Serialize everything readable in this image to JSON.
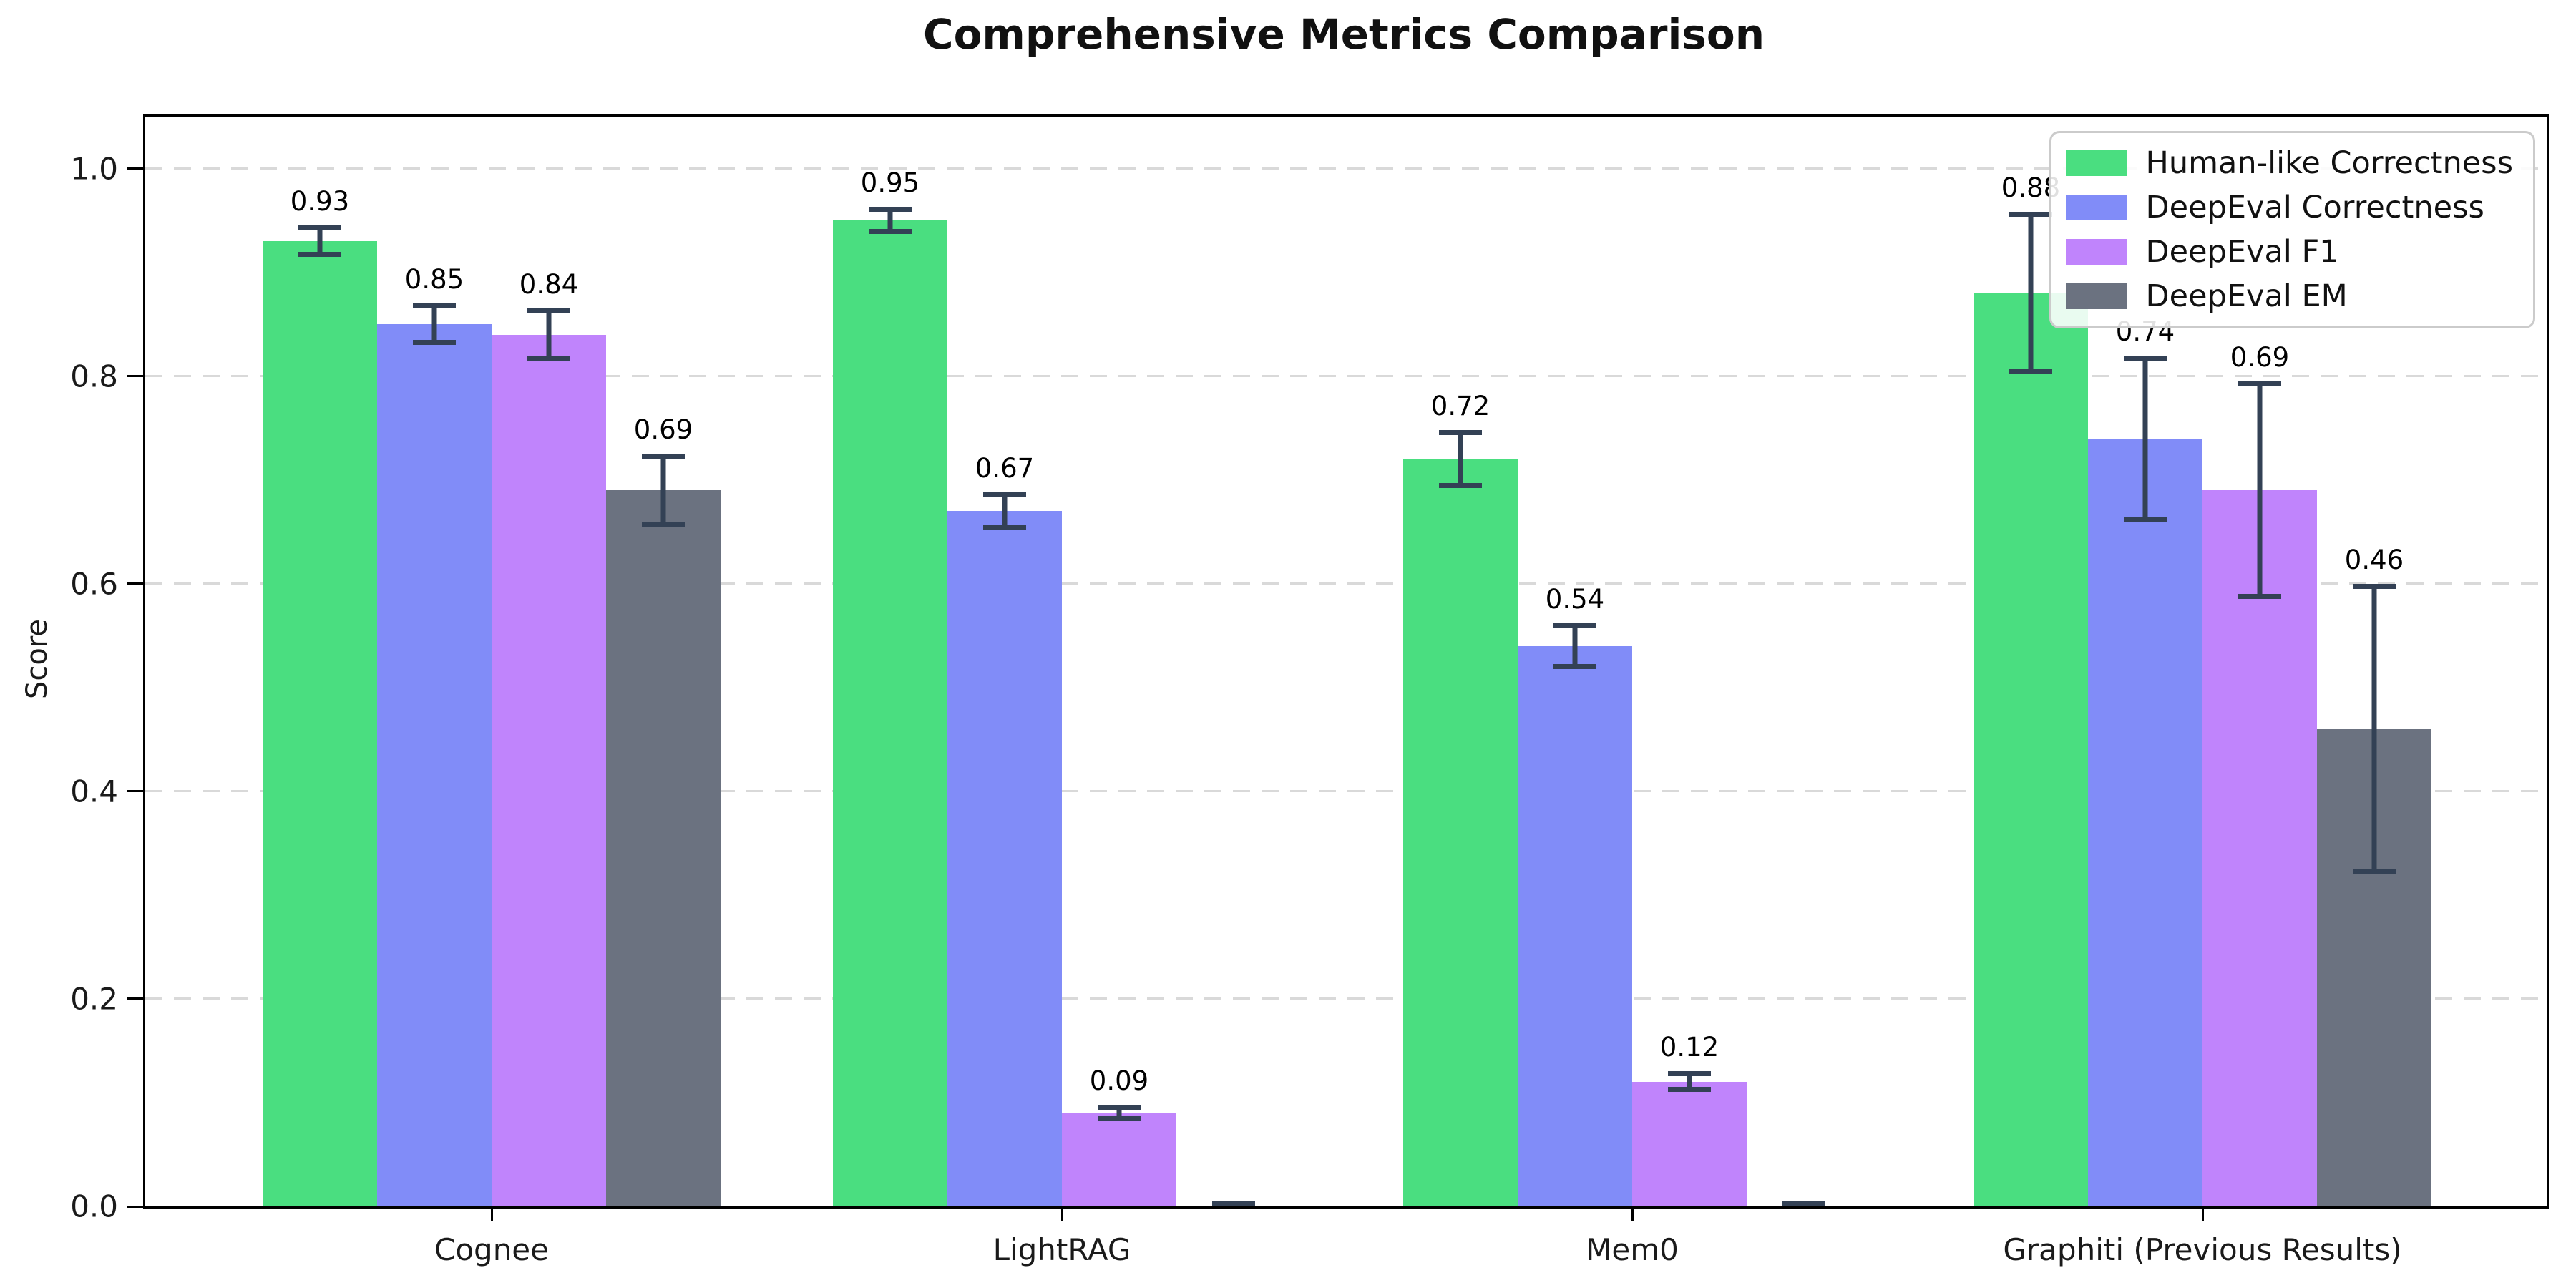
{
  "chart_data": {
    "type": "bar",
    "title": "Comprehensive Metrics Comparison",
    "xlabel": "",
    "ylabel": "Score",
    "categories": [
      "Cognee",
      "LightRAG",
      "Mem0",
      "Graphiti (Previous Results)"
    ],
    "series": [
      {
        "name": "Human-like Correctness",
        "color": "#4ade80",
        "values": [
          0.93,
          0.95,
          0.72,
          0.88
        ],
        "errors": [
          0.015,
          0.013,
          0.028,
          0.078
        ],
        "labels": [
          "0.93",
          "0.95",
          "0.72",
          "0.88"
        ]
      },
      {
        "name": "DeepEval Correctness",
        "color": "#818cf8",
        "values": [
          0.85,
          0.67,
          0.54,
          0.74
        ],
        "errors": [
          0.02,
          0.018,
          0.022,
          0.08
        ],
        "labels": [
          "0.85",
          "0.67",
          "0.54",
          "0.74"
        ]
      },
      {
        "name": "DeepEval F1",
        "color": "#c084fc",
        "values": [
          0.84,
          0.09,
          0.12,
          0.69
        ],
        "errors": [
          0.025,
          0.008,
          0.01,
          0.105
        ],
        "labels": [
          "0.84",
          "0.09",
          "0.12",
          "0.69"
        ]
      },
      {
        "name": "DeepEval EM",
        "color": "#6b7280",
        "values": [
          0.69,
          0.0,
          0.0,
          0.46
        ],
        "errors": [
          0.035,
          0.004,
          0.004,
          0.14
        ],
        "labels": [
          "0.69",
          "",
          "",
          "0.46"
        ]
      }
    ],
    "yticks": [
      0.0,
      0.2,
      0.4,
      0.6,
      0.8,
      1.0
    ],
    "ytick_labels": [
      "0.0",
      "0.2",
      "0.4",
      "0.6",
      "0.8",
      "1.0"
    ],
    "ylim": [
      0,
      1.05
    ],
    "grid": "horizontal-dashed",
    "gridline_color": "#d9d9d9",
    "error_bar_color": "#334155",
    "legend_position": "upper right"
  }
}
